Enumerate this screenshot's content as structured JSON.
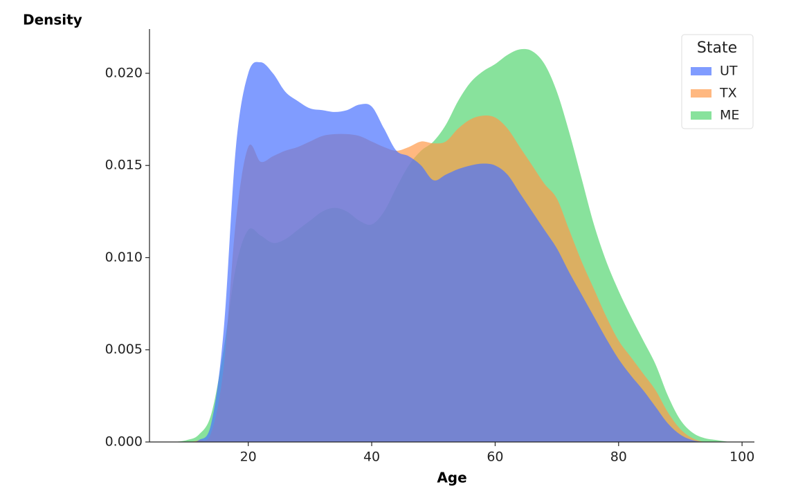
{
  "chart_data": {
    "type": "kde_area",
    "y_label": "Density",
    "x_label": "Age",
    "legend_title": "State",
    "legend_position": "upper right",
    "x": [
      8,
      10,
      12,
      14,
      16,
      18,
      20,
      22,
      24,
      26,
      28,
      30,
      32,
      34,
      36,
      38,
      40,
      42,
      44,
      46,
      48,
      50,
      52,
      54,
      56,
      58,
      60,
      62,
      64,
      66,
      68,
      70,
      72,
      74,
      76,
      78,
      80,
      82,
      84,
      86,
      88,
      90,
      92,
      94,
      96,
      98
    ],
    "series": [
      {
        "name": "UT",
        "color": "#4a72ff",
        "values": [
          0,
          0,
          0.0001,
          0.001,
          0.006,
          0.016,
          0.02,
          0.0206,
          0.02,
          0.019,
          0.0185,
          0.0181,
          0.018,
          0.0179,
          0.018,
          0.0183,
          0.0182,
          0.017,
          0.0158,
          0.0155,
          0.015,
          0.0142,
          0.0145,
          0.0148,
          0.015,
          0.0151,
          0.015,
          0.0145,
          0.0135,
          0.0125,
          0.0115,
          0.0105,
          0.0092,
          0.008,
          0.0068,
          0.0056,
          0.0045,
          0.0036,
          0.0028,
          0.0019,
          0.001,
          0.0004,
          0.0001,
          0,
          0,
          0
        ]
      },
      {
        "name": "TX",
        "color": "#ff9a4a",
        "values": [
          0,
          0,
          0.0001,
          0.0005,
          0.004,
          0.012,
          0.016,
          0.0152,
          0.0155,
          0.0158,
          0.016,
          0.0163,
          0.0166,
          0.0167,
          0.0167,
          0.0166,
          0.0163,
          0.016,
          0.0158,
          0.016,
          0.0163,
          0.0162,
          0.0163,
          0.017,
          0.0175,
          0.0177,
          0.0176,
          0.017,
          0.016,
          0.015,
          0.014,
          0.0132,
          0.0115,
          0.0098,
          0.0083,
          0.0068,
          0.0055,
          0.0046,
          0.0037,
          0.0028,
          0.0016,
          0.0007,
          0.0002,
          0,
          0,
          0
        ]
      },
      {
        "name": "ME",
        "color": "#56d672",
        "values": [
          0,
          0.0001,
          0.0004,
          0.0015,
          0.005,
          0.0095,
          0.0115,
          0.0112,
          0.0108,
          0.011,
          0.0115,
          0.012,
          0.0125,
          0.0127,
          0.0125,
          0.012,
          0.0118,
          0.0125,
          0.0138,
          0.015,
          0.0158,
          0.0163,
          0.0172,
          0.0185,
          0.0195,
          0.0201,
          0.0205,
          0.021,
          0.0213,
          0.0212,
          0.0205,
          0.019,
          0.0168,
          0.0143,
          0.0118,
          0.0098,
          0.0082,
          0.0068,
          0.0055,
          0.0042,
          0.0025,
          0.0012,
          0.0005,
          0.0002,
          0.0001,
          0
        ]
      }
    ],
    "xlim": [
      4,
      102
    ],
    "ylim": [
      0,
      0.0224
    ],
    "xticks": [
      20,
      40,
      60,
      80,
      100
    ],
    "yticks": [
      {
        "value": 0,
        "label": "0.000"
      },
      {
        "value": 0.005,
        "label": "0.005"
      },
      {
        "value": 0.01,
        "label": "0.010"
      },
      {
        "value": 0.015,
        "label": "0.015"
      },
      {
        "value": 0.02,
        "label": "0.020"
      }
    ]
  }
}
